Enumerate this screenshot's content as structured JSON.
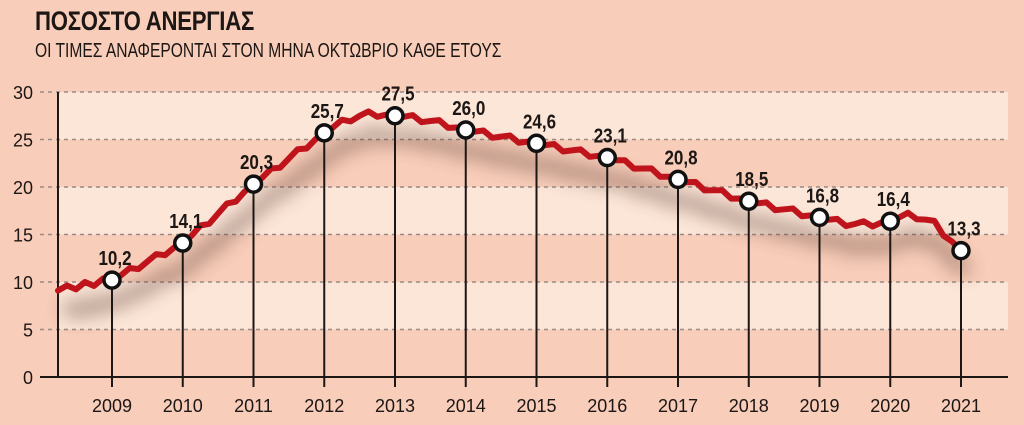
{
  "header": {
    "title": "ΠΟΣΟΣΤΟ ΑΝΕΡΓΙΑΣ",
    "subtitle": "ΟΙ ΤΙΜΕΣ ΑΝΑΦΕΡΟΝΤΑΙ ΣΤΟΝ ΜΗΝΑ ΟΚΤΩΒΡΙΟ ΚΑΘΕ ΕΤΟΥΣ"
  },
  "colors": {
    "background": "#f8cdb9",
    "band_light": "#fce6d8",
    "line": "#c0141c",
    "axis": "#1c1614",
    "grid": "#9a8a86"
  },
  "chart_data": {
    "type": "line",
    "title": "ΠΟΣΟΣΤΟ ΑΝΕΡΓΙΑΣ",
    "subtitle": "ΟΙ ΤΙΜΕΣ ΑΝΑΦΕΡΟΝΤΑΙ ΣΤΟΝ ΜΗΝΑ ΟΚΤΩΒΡΙΟ ΚΑΘΕ ΕΤΟΥΣ",
    "xlabel": "",
    "ylabel": "",
    "ylim": [
      0,
      30
    ],
    "yticks": [
      "0",
      "5",
      "10",
      "15",
      "20",
      "25",
      "30"
    ],
    "categories": [
      "2009",
      "2010",
      "2011",
      "2012",
      "2013",
      "2014",
      "2015",
      "2016",
      "2017",
      "2018",
      "2019",
      "2020",
      "2021"
    ],
    "values": [
      10.2,
      14.1,
      20.3,
      25.7,
      27.5,
      26.0,
      24.6,
      23.1,
      20.8,
      18.5,
      16.8,
      16.4,
      13.3
    ],
    "value_labels": [
      "10,2",
      "14,1",
      "20,3",
      "25,7",
      "27,5",
      "26,0",
      "24,6",
      "23,1",
      "20,8",
      "18,5",
      "16,8",
      "16,4",
      "13,3"
    ],
    "grid": true,
    "legend": null
  }
}
